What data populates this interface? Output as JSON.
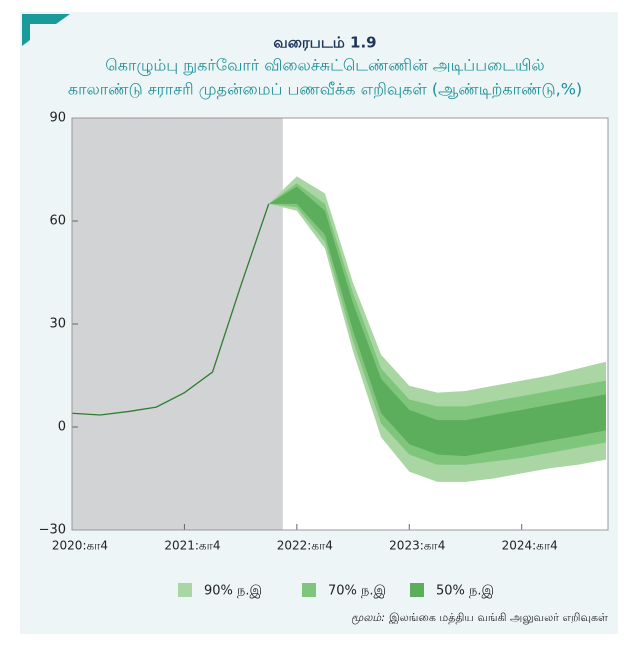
{
  "chart_data": {
    "type": "fan",
    "label": "வரைபடம் 1.9",
    "title": [
      "கொழும்பு நுகர்வோர் விலைச்சுட்டெண்ணின் அடிப்படையில்",
      "காலாண்டு சராசரி முதன்மைப் பணவீக்க எறிவுகள் (ஆண்டிற்காண்டு,%)"
    ],
    "categories": [
      "2020:கா4",
      null,
      null,
      null,
      "2021:கா4",
      null,
      null,
      null,
      "2022:கா4",
      null,
      null,
      null,
      "2023:கா4",
      null,
      null,
      null,
      "2024:கா4",
      null,
      null,
      null
    ],
    "actual": {
      "color": "#2e7d32",
      "values": [
        4,
        3.5,
        4.5,
        5.8,
        10,
        16,
        41,
        65,
        null,
        null,
        null,
        null,
        null,
        null,
        null,
        null,
        null,
        null,
        null,
        null
      ]
    },
    "bands": [
      {
        "name": "90% ந.இ",
        "color": "#a9d6a3",
        "lower": [
          null,
          null,
          null,
          null,
          null,
          null,
          null,
          65,
          63,
          52,
          22,
          -3,
          -13,
          -16,
          -16,
          -15,
          -13.5,
          -12,
          -11,
          -9.5
        ],
        "upper": [
          null,
          null,
          null,
          null,
          null,
          null,
          null,
          65,
          73,
          68,
          42,
          21,
          12,
          10,
          10.5,
          12,
          13.5,
          15,
          17,
          19
        ]
      },
      {
        "name": "70% ந.இ",
        "color": "#80c57c",
        "lower": [
          null,
          null,
          null,
          null,
          null,
          null,
          null,
          65,
          64,
          54,
          25,
          1,
          -8,
          -11,
          -11,
          -10,
          -9,
          -7.5,
          -6,
          -4.5
        ],
        "upper": [
          null,
          null,
          null,
          null,
          null,
          null,
          null,
          65,
          71,
          65,
          39,
          17,
          8,
          6,
          6,
          7.5,
          9,
          10.5,
          12,
          13.5
        ]
      },
      {
        "name": "50% ந.இ",
        "color": "#5cae5c",
        "lower": [
          null,
          null,
          null,
          null,
          null,
          null,
          null,
          65,
          65,
          56,
          28,
          4,
          -5,
          -8,
          -8.5,
          -7,
          -5.5,
          -4,
          -2.5,
          -1
        ],
        "upper": [
          null,
          null,
          null,
          null,
          null,
          null,
          null,
          65,
          70,
          63,
          36,
          14,
          5,
          2,
          2,
          3.5,
          5,
          6.5,
          8,
          9.5
        ]
      }
    ],
    "ylim": [
      -30,
      90
    ],
    "yticks": [
      90,
      60,
      30,
      0,
      {
        "value": -30,
        "label": "−30"
      }
    ],
    "source_label": "மூலம்:",
    "source_text": "இலங்கை மத்திய வங்கி அலுவலர் எறிவுகள்"
  }
}
